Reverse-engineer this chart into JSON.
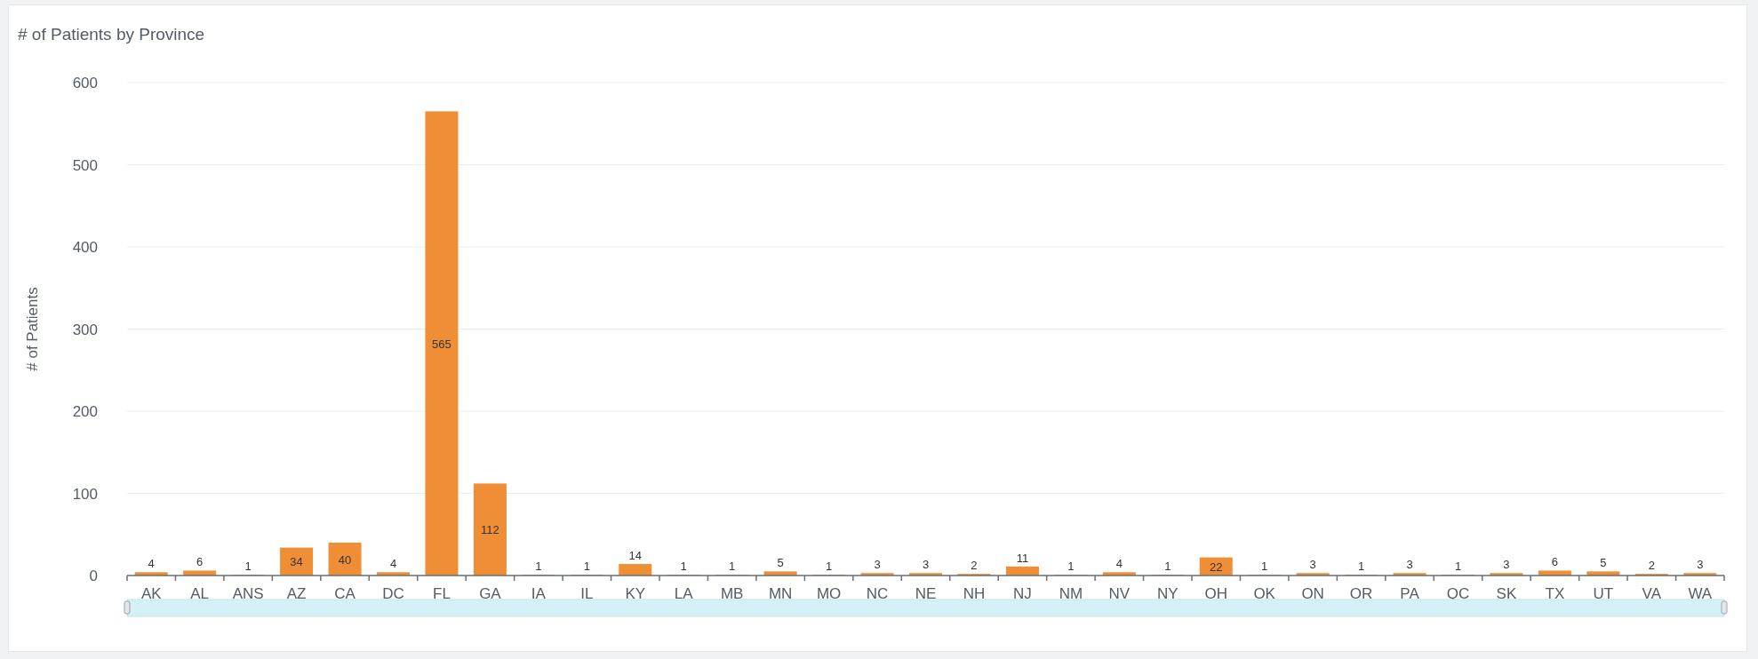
{
  "chart_data": {
    "type": "bar",
    "title": "# of Patients by Province",
    "ylabel": "# of Patients",
    "categories": [
      "AK",
      "AL",
      "ANS",
      "AZ",
      "CA",
      "DC",
      "FL",
      "GA",
      "IA",
      "IL",
      "KY",
      "LA",
      "MB",
      "MN",
      "MO",
      "NC",
      "NE",
      "NH",
      "NJ",
      "NM",
      "NV",
      "NY",
      "OH",
      "OK",
      "ON",
      "OR",
      "PA",
      "QC",
      "SK",
      "TX",
      "UT",
      "VA",
      "WA"
    ],
    "values": [
      4,
      6,
      1,
      34,
      40,
      4,
      565,
      112,
      1,
      1,
      14,
      1,
      1,
      5,
      1,
      3,
      3,
      2,
      11,
      1,
      4,
      1,
      22,
      1,
      3,
      1,
      3,
      1,
      3,
      6,
      5,
      2,
      3
    ],
    "color": "#ef8e35",
    "ylim": [
      0,
      600
    ],
    "yticks": [
      0,
      100,
      200,
      300,
      400,
      500,
      600
    ],
    "grid": "y",
    "data_labels": true
  }
}
